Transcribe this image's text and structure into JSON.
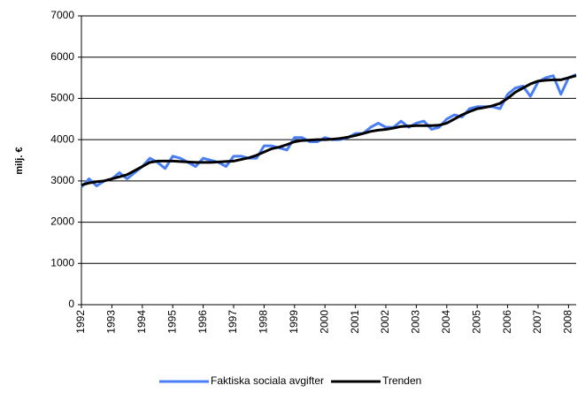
{
  "chart_data": {
    "type": "line",
    "y_label": "milj. €",
    "categories": [
      "1992",
      null,
      null,
      null,
      "1993",
      null,
      null,
      null,
      "1994",
      null,
      null,
      null,
      "1995",
      null,
      null,
      null,
      "1996",
      null,
      null,
      null,
      "1997",
      null,
      null,
      null,
      "1998",
      null,
      null,
      null,
      "1999",
      null,
      null,
      null,
      "2000",
      null,
      null,
      null,
      "2001",
      null,
      null,
      null,
      "2002",
      null,
      null,
      null,
      "2003",
      null,
      null,
      null,
      "2004",
      null,
      null,
      null,
      "2005",
      null,
      null,
      null,
      "2006",
      null,
      null,
      null,
      "2007",
      null,
      null,
      null,
      "2008",
      null
    ],
    "series": [
      {
        "name": "Faktiska sociala avgifter",
        "color": "#4a7ef5",
        "values": [
          2850,
          3050,
          2880,
          3000,
          3050,
          3200,
          3050,
          3200,
          3350,
          3550,
          3450,
          3300,
          3600,
          3550,
          3450,
          3350,
          3550,
          3500,
          3450,
          3350,
          3600,
          3600,
          3550,
          3550,
          3850,
          3850,
          3800,
          3750,
          4050,
          4050,
          3950,
          3950,
          4050,
          4000,
          4000,
          4050,
          4150,
          4150,
          4300,
          4400,
          4300,
          4300,
          4450,
          4300,
          4400,
          4450,
          4250,
          4300,
          4500,
          4600,
          4550,
          4750,
          4800,
          4800,
          4800,
          4750,
          5100,
          5250,
          5300,
          5050,
          5400,
          5500,
          5550,
          5100,
          5500,
          5580
        ]
      },
      {
        "name": "Trenden",
        "color": "#000000",
        "values": [
          2900,
          2950,
          2980,
          3000,
          3050,
          3100,
          3150,
          3250,
          3350,
          3450,
          3480,
          3480,
          3480,
          3470,
          3460,
          3450,
          3450,
          3450,
          3460,
          3470,
          3480,
          3520,
          3560,
          3620,
          3700,
          3780,
          3820,
          3880,
          3950,
          3980,
          3990,
          4000,
          4000,
          4010,
          4030,
          4060,
          4100,
          4150,
          4200,
          4230,
          4250,
          4280,
          4320,
          4330,
          4340,
          4340,
          4340,
          4350,
          4400,
          4500,
          4600,
          4680,
          4750,
          4780,
          4820,
          4880,
          5000,
          5150,
          5250,
          5350,
          5420,
          5440,
          5450,
          5450,
          5500,
          5550
        ]
      }
    ],
    "ylim": [
      0,
      7000
    ],
    "yticks": [
      0,
      1000,
      2000,
      3000,
      4000,
      5000,
      6000,
      7000
    ],
    "grid": true,
    "legend": "bottom"
  }
}
